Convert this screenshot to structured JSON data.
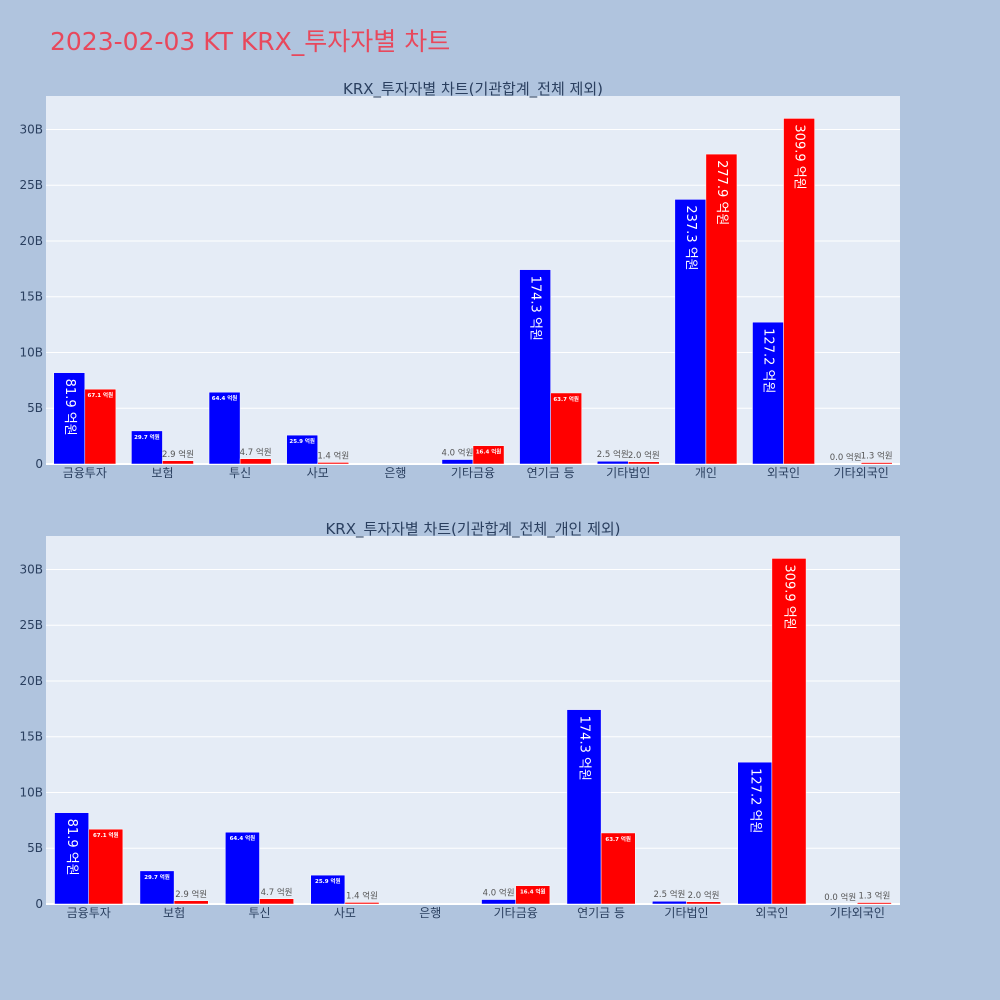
{
  "page_title": "2023-02-03 KT KRX_투자자별 차트",
  "colors": {
    "buy": "#0000ff",
    "sell": "#ff0000",
    "plot_bg": "#e5ecf6",
    "page_bg": "#b0c4de",
    "title": "#e8485c"
  },
  "chart_data": [
    {
      "type": "bar",
      "title": "KRX_투자자별 차트(기관합계_전체 제외)",
      "categories": [
        "금융투자",
        "보험",
        "투신",
        "사모",
        "은행",
        "기타금융",
        "연기금 등",
        "기타법인",
        "개인",
        "외국인",
        "기타외국인"
      ],
      "series": [
        {
          "values": [
            8190000000,
            2970000000,
            6440000000,
            2590000000,
            0,
            400000000,
            17430000000,
            250000000,
            23730000000,
            12720000000,
            0
          ],
          "labels": [
            "81.9 억원",
            "29.7 억원",
            "64.4 억원",
            "25.9 억원",
            "",
            "4.0 억원",
            "174.3 억원",
            "2.5 억원",
            "237.3 억원",
            "127.2 억원",
            "0.0 억원"
          ]
        },
        {
          "values": [
            6710000000,
            290000000,
            470000000,
            140000000,
            0,
            1640000000,
            6370000000,
            200000000,
            27790000000,
            30990000000,
            130000000
          ],
          "labels": [
            "67.1 억원",
            "2.9 억원",
            "4.7 억원",
            "1.4 억원",
            "",
            "16.4 억원",
            "63.7 억원",
            "2.0 억원",
            "277.9 억원",
            "309.9 억원",
            "1.3 억원"
          ]
        }
      ],
      "ylim": [
        0,
        33000000000
      ],
      "yticks": [
        0,
        5000000000,
        10000000000,
        15000000000,
        20000000000,
        25000000000,
        30000000000
      ],
      "ytick_labels": [
        "0",
        "5B",
        "10B",
        "15B",
        "20B",
        "25B",
        "30B"
      ],
      "grid": true
    },
    {
      "type": "bar",
      "title": "KRX_투자자별 차트(기관합계_전체_개인 제외)",
      "categories": [
        "금융투자",
        "보험",
        "투신",
        "사모",
        "은행",
        "기타금융",
        "연기금 등",
        "기타법인",
        "외국인",
        "기타외국인"
      ],
      "series": [
        {
          "values": [
            8190000000,
            2970000000,
            6440000000,
            2590000000,
            0,
            400000000,
            17430000000,
            250000000,
            12720000000,
            0
          ],
          "labels": [
            "81.9 억원",
            "29.7 억원",
            "64.4 억원",
            "25.9 억원",
            "",
            "4.0 억원",
            "174.3 억원",
            "2.5 억원",
            "127.2 억원",
            "0.0 억원"
          ]
        },
        {
          "values": [
            6710000000,
            290000000,
            470000000,
            140000000,
            0,
            1640000000,
            6370000000,
            200000000,
            30990000000,
            130000000
          ],
          "labels": [
            "67.1 억원",
            "2.9 억원",
            "4.7 억원",
            "1.4 억원",
            "",
            "16.4 억원",
            "63.7 억원",
            "2.0 억원",
            "309.9 억원",
            "1.3 억원"
          ]
        }
      ],
      "ylim": [
        0,
        33000000000
      ],
      "yticks": [
        0,
        5000000000,
        10000000000,
        15000000000,
        20000000000,
        25000000000,
        30000000000
      ],
      "ytick_labels": [
        "0",
        "5B",
        "10B",
        "15B",
        "20B",
        "25B",
        "30B"
      ],
      "grid": true
    }
  ]
}
